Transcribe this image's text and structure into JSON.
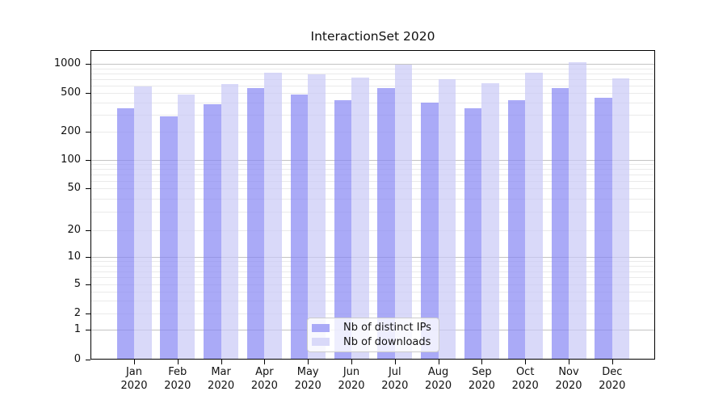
{
  "chart_data": {
    "type": "bar",
    "title": "InteractionSet 2020",
    "categories": [
      "Jan",
      "Feb",
      "Mar",
      "Apr",
      "May",
      "Jun",
      "Jul",
      "Aug",
      "Sep",
      "Oct",
      "Nov",
      "Dec"
    ],
    "category_year_line": "2020",
    "series": [
      {
        "name": "Nb of distinct IPs",
        "color": "#aaaaf7",
        "values": [
          350,
          290,
          380,
          560,
          480,
          420,
          560,
          400,
          350,
          420,
          560,
          450
        ]
      },
      {
        "name": "Nb of downloads",
        "color": "#d9d9f9",
        "values": [
          580,
          480,
          620,
          810,
          780,
          720,
          980,
          690,
          630,
          810,
          1040,
          710
        ]
      }
    ],
    "xlabel": "",
    "ylabel": "",
    "yscale": "symlog (1-2-5 labeled ticks)",
    "ytick_labels": [
      "0",
      "1",
      "2",
      "5",
      "10",
      "20",
      "50",
      "100",
      "200",
      "500",
      "1000"
    ],
    "ytick_values": [
      0,
      1,
      2,
      5,
      10,
      20,
      50,
      100,
      200,
      500,
      1000
    ],
    "ylim": [
      0,
      1400
    ],
    "grid": {
      "major_values": [
        1,
        10,
        100,
        1000
      ],
      "minor_multiples": [
        2,
        3,
        4,
        5,
        6,
        7,
        8,
        9
      ],
      "minor_decades": [
        1,
        10,
        100
      ],
      "major_color": "#c3c3c3",
      "minor_color": "#eaeaea"
    },
    "legend": {
      "position": "inside lower center",
      "entries": [
        "Nb of distinct IPs",
        "Nb of downloads"
      ]
    },
    "frame_color": "#000000",
    "background_color": "#ffffff"
  }
}
